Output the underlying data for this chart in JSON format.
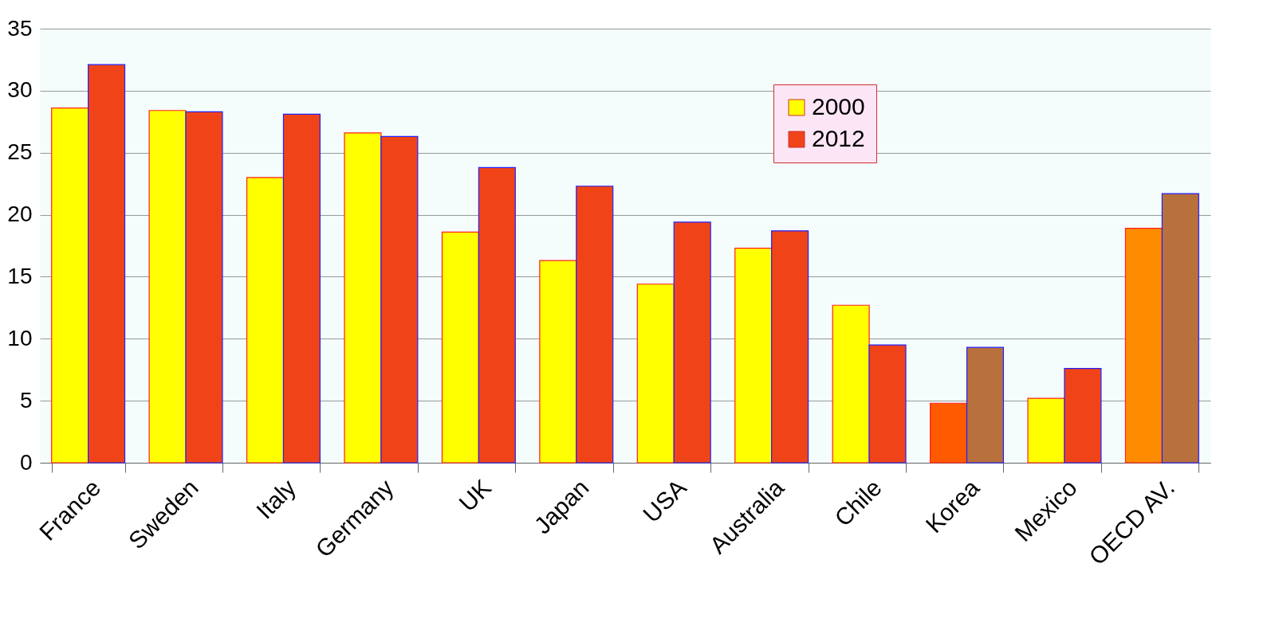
{
  "chart_data": {
    "type": "bar",
    "categories": [
      "France",
      "Sweden",
      "Italy",
      "Germany",
      "UK",
      "Japan",
      "USA",
      "Australia",
      "Chile",
      "Korea",
      "Mexico",
      "OECD AV."
    ],
    "series": [
      {
        "name": "2000",
        "color": "#ffff00",
        "colors": [
          "#ffff00",
          "#ffff00",
          "#ffff00",
          "#ffff00",
          "#ffff00",
          "#ffff00",
          "#ffff00",
          "#ffff00",
          "#ffff00",
          "#ff5a00",
          "#ffff00",
          "#ff8c00"
        ],
        "values": [
          28.6,
          28.4,
          23.0,
          26.6,
          18.6,
          16.3,
          14.4,
          17.3,
          12.7,
          4.8,
          5.2,
          18.9
        ]
      },
      {
        "name": "2012",
        "color": "#f04418",
        "colors": [
          "#f04418",
          "#f04418",
          "#f04418",
          "#f04418",
          "#f04418",
          "#f04418",
          "#f04418",
          "#f04418",
          "#f04418",
          "#b8703c",
          "#f04418",
          "#b8703c"
        ],
        "values": [
          32.1,
          28.3,
          28.1,
          26.3,
          23.8,
          22.3,
          19.4,
          18.7,
          9.5,
          9.3,
          7.6,
          21.7
        ]
      }
    ],
    "ylim": [
      0,
      35
    ],
    "yticks": [
      0,
      5,
      10,
      15,
      20,
      25,
      30,
      35
    ],
    "grid": "y",
    "legend": "top right"
  }
}
